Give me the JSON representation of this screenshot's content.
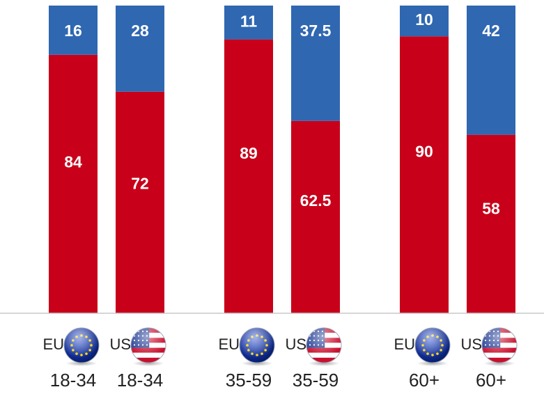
{
  "chart_data": {
    "type": "bar",
    "stacked": true,
    "categories": [
      "18-34",
      "18-34",
      "35-59",
      "35-59",
      "60+",
      "60+"
    ],
    "regions": [
      "EU",
      "US",
      "EU",
      "US",
      "EU",
      "US"
    ],
    "flags": [
      "eu-flag-icon",
      "us-flag-icon",
      "eu-flag-icon",
      "us-flag-icon",
      "eu-flag-icon",
      "us-flag-icon"
    ],
    "series": [
      {
        "values": [
          84,
          72,
          89,
          62.5,
          90,
          58
        ],
        "color": "#c8001a"
      },
      {
        "values": [
          16,
          28,
          11,
          37.5,
          10,
          42
        ],
        "color": "#2f67b1"
      }
    ],
    "ylim": [
      0,
      100
    ],
    "grid": false,
    "legend": "none",
    "xlabel": "",
    "ylabel": ""
  }
}
